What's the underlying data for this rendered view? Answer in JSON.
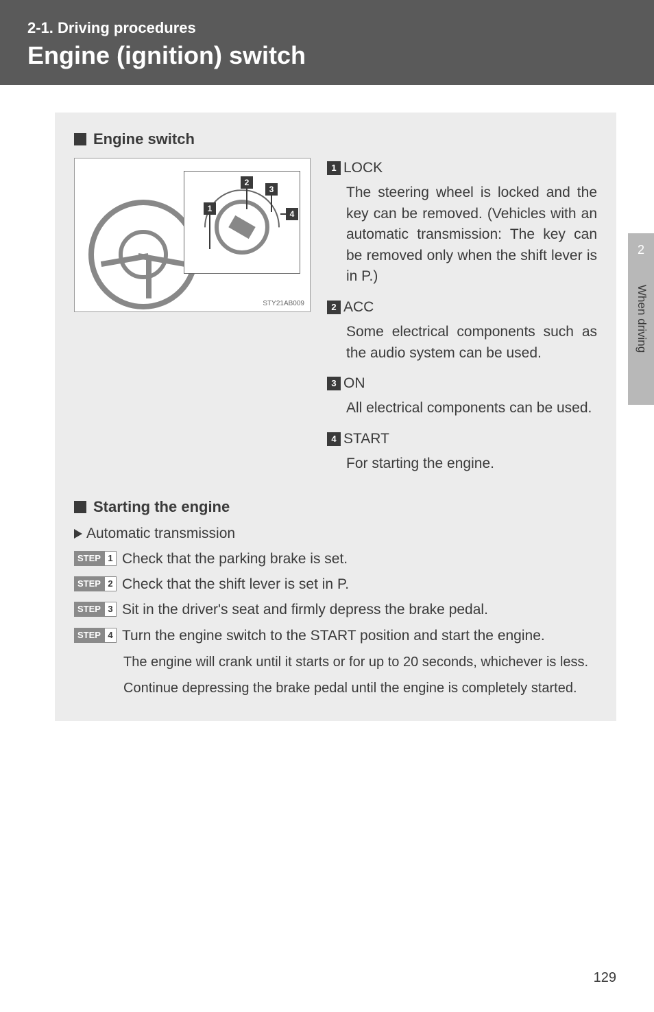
{
  "header": {
    "section_number": "2-1. Driving procedures",
    "title": "Engine (ignition) switch"
  },
  "engine_switch": {
    "heading": "Engine switch",
    "illustration_code": "STY21AB009",
    "callouts": [
      "1",
      "2",
      "3",
      "4"
    ],
    "positions": [
      {
        "num": "1",
        "label": "LOCK",
        "desc": "The steering wheel is locked and the key can be removed. (Vehicles with an automatic transmission: The key can be removed only when the shift lever is in P.)"
      },
      {
        "num": "2",
        "label": "ACC",
        "desc": "Some electrical components such as the audio system can be used."
      },
      {
        "num": "3",
        "label": "ON",
        "desc": "All electrical components can be used."
      },
      {
        "num": "4",
        "label": "START",
        "desc": "For starting the engine."
      }
    ]
  },
  "starting": {
    "heading": "Starting the engine",
    "variant": "Automatic transmission",
    "step_label": "STEP",
    "steps": [
      {
        "n": "1",
        "text": "Check that the parking brake is set."
      },
      {
        "n": "2",
        "text": "Check that the shift lever is set in P."
      },
      {
        "n": "3",
        "text": "Sit in the driver's seat and firmly depress the brake pedal."
      },
      {
        "n": "4",
        "text": "Turn the engine switch to the START position and start the engine."
      }
    ],
    "note1": "The engine will crank until it starts or for up to 20 seconds, whichever is less.",
    "note2": "Continue depressing the brake pedal until the engine is completely started."
  },
  "side": {
    "chapter_num": "2",
    "chapter_label": "When driving"
  },
  "page_number": "129",
  "colors": {
    "header_bg": "#5a5a5a",
    "content_bg": "#ececec",
    "text": "#3a3a3a",
    "tab_bg": "#b8b8b8"
  },
  "typography": {
    "body_fontsize_pt": 16,
    "title_fontsize_pt": 27,
    "section_num_fontsize_pt": 16
  }
}
